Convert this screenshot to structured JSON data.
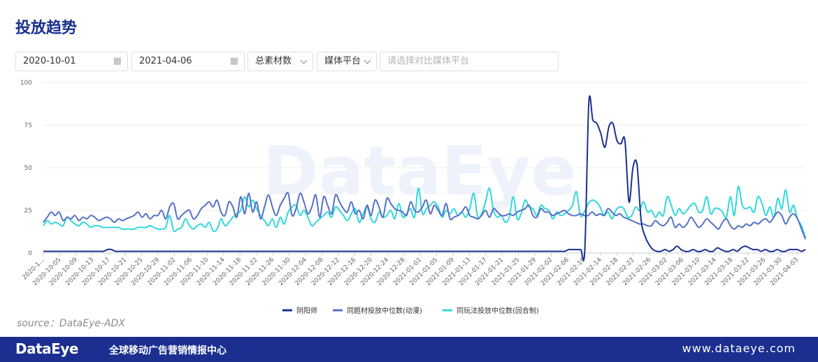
{
  "header": {
    "title": "投放趋势"
  },
  "filters": {
    "start_date": "2020-10-01",
    "end_date": "2021-04-06",
    "material": "总素材数",
    "platform": "媒体平台",
    "compare_placeholder": "请选择对比媒体平台"
  },
  "footer": {
    "source": "source：DataEye-ADX",
    "logo": "DataEye",
    "slogan": "全球移动广告营销情报中心",
    "url": "www.dataeye.com"
  },
  "colors": {
    "brand": "#1a2f8f",
    "s1": "#1a2f8f",
    "s2": "#5470c6",
    "s3": "#2fd8dc"
  },
  "chart_data": {
    "type": "line",
    "yticks": [
      0,
      25,
      50,
      75,
      100
    ],
    "ylim": [
      0,
      100
    ],
    "xlabels": [
      "2020-1...",
      "2020-10-05",
      "2020-10-09",
      "2020-10-13",
      "2020-10-17",
      "2020-10-21",
      "2020-10-25",
      "2020-10-29",
      "2020-11-02",
      "2020-11-06",
      "2020-11-10",
      "2020-11-14",
      "2020-11-18",
      "2020-11-22",
      "2020-11-26",
      "2020-11-30",
      "2020-12-04",
      "2020-12-08",
      "2020-12-12",
      "2020-12-16",
      "2020-12-20",
      "2020-12-24",
      "2020-12-28",
      "2021-01-01",
      "2021-01-05",
      "2021-01-09",
      "2021-01-13",
      "2021-01-17",
      "2021-01-21",
      "2021-01-25",
      "2021-01-29",
      "2021-02-02",
      "2021-02-06",
      "2021-02-10",
      "2021-02-14",
      "2021-02-18",
      "2021-02-22",
      "2021-02-26",
      "2021-03-02",
      "2021-03-06",
      "2021-03-10",
      "2021-03-14",
      "2021-03-18",
      "2021-03-22",
      "2021-03-26",
      "2021-03-30",
      "2021-04-03"
    ],
    "series": [
      {
        "name": "阴阳师",
        "values": [
          1,
          1,
          1,
          1,
          1,
          1,
          1,
          1,
          1,
          1,
          1,
          1,
          1,
          1,
          1,
          1,
          2,
          2,
          1,
          1,
          1,
          1,
          1,
          1,
          1,
          1,
          1,
          1,
          1,
          1,
          1,
          1,
          1,
          1,
          1,
          1,
          1,
          1,
          1,
          1,
          1,
          1,
          1,
          1,
          1,
          1,
          1,
          1,
          1,
          1,
          1,
          1,
          1,
          1,
          1,
          1,
          1,
          1,
          1,
          1,
          1,
          1,
          1,
          1,
          1,
          1,
          1,
          1,
          1,
          1,
          1,
          1,
          1,
          1,
          1,
          1,
          1,
          1,
          1,
          1,
          1,
          1,
          1,
          1,
          1,
          1,
          1,
          1,
          1,
          1,
          1,
          1,
          1,
          1,
          1,
          1,
          1,
          1,
          1,
          1,
          1,
          1,
          1,
          1,
          1,
          1,
          1,
          1,
          1,
          1,
          1,
          1,
          1,
          1,
          1,
          1,
          1,
          1,
          1,
          1,
          1,
          1,
          1,
          1,
          1,
          1,
          1,
          1,
          1,
          1,
          1,
          2,
          2,
          2,
          2,
          2,
          88,
          78,
          76,
          70,
          62,
          74,
          76,
          66,
          64,
          66,
          30,
          50,
          52,
          20,
          10,
          5,
          2,
          1,
          1,
          2,
          1,
          2,
          4,
          2,
          1,
          1,
          2,
          1,
          1,
          2,
          1,
          1,
          3,
          2,
          1,
          1,
          2,
          1,
          3,
          4,
          3,
          2,
          2,
          1,
          2,
          1,
          1,
          2,
          1,
          1,
          2,
          2,
          2,
          1,
          2
        ],
        "color_key": "s1"
      },
      {
        "name": "同题材投放中位数(动漫)",
        "values": [
          18,
          21,
          24,
          22,
          24,
          19,
          21,
          20,
          22,
          19,
          21,
          20,
          22,
          21,
          19,
          20,
          21,
          20,
          18,
          20,
          19,
          20,
          21,
          22,
          24,
          21,
          23,
          20,
          22,
          22,
          25,
          20,
          27,
          29,
          20,
          22,
          24,
          25,
          20,
          22,
          26,
          28,
          30,
          27,
          31,
          24,
          22,
          30,
          27,
          21,
          33,
          23,
          35,
          24,
          30,
          20,
          27,
          34,
          27,
          22,
          28,
          32,
          35,
          22,
          26,
          35,
          30,
          23,
          27,
          34,
          21,
          33,
          28,
          23,
          34,
          30,
          26,
          24,
          30,
          23,
          25,
          20,
          28,
          22,
          31,
          27,
          21,
          32,
          29,
          26,
          25,
          24,
          22,
          30,
          25,
          24,
          27,
          31,
          23,
          28,
          25,
          22,
          29,
          20,
          21,
          22,
          24,
          27,
          22,
          21,
          20,
          22,
          25,
          21,
          26,
          24,
          22,
          22,
          23,
          22,
          24,
          25,
          26,
          28,
          22,
          21,
          26,
          24,
          24,
          22,
          23,
          24,
          25,
          23,
          22,
          22,
          23,
          22,
          22,
          24,
          22,
          23,
          22,
          26,
          24,
          22,
          23,
          21,
          20,
          19,
          18,
          17,
          17,
          16,
          16,
          19,
          17,
          16,
          18,
          21,
          15,
          17,
          15,
          17,
          21,
          18,
          15,
          17,
          20,
          18,
          16,
          14,
          18,
          20,
          16,
          14,
          16,
          15,
          17,
          16,
          18,
          17,
          19,
          20,
          18,
          21,
          24,
          22,
          17,
          21,
          23,
          20,
          14,
          8
        ],
        "color_key": "s2"
      },
      {
        "name": "同玩法投放中位数(回合制)",
        "values": [
          16,
          19,
          17,
          18,
          17,
          16,
          21,
          19,
          17,
          16,
          18,
          17,
          15,
          16,
          16,
          15,
          15,
          15,
          15,
          15,
          14,
          14,
          14,
          14,
          15,
          15,
          15,
          16,
          15,
          14,
          14,
          15,
          22,
          13,
          14,
          15,
          20,
          16,
          14,
          16,
          17,
          15,
          18,
          13,
          14,
          20,
          16,
          18,
          21,
          23,
          25,
          33,
          27,
          31,
          26,
          22,
          19,
          16,
          20,
          15,
          21,
          17,
          24,
          27,
          28,
          22,
          25,
          21,
          16,
          18,
          20,
          22,
          24,
          21,
          27,
          25,
          22,
          19,
          23,
          26,
          18,
          23,
          27,
          20,
          18,
          24,
          21,
          22,
          25,
          20,
          29,
          21,
          23,
          26,
          21,
          38,
          23,
          26,
          28,
          30,
          27,
          21,
          25,
          23,
          26,
          22,
          24,
          21,
          26,
          35,
          21,
          23,
          30,
          38,
          25,
          21,
          22,
          18,
          21,
          33,
          20,
          23,
          31,
          27,
          26,
          22,
          28,
          26,
          25,
          20,
          24,
          22,
          23,
          25,
          28,
          36,
          22,
          24,
          29,
          31,
          30,
          27,
          22,
          24,
          20,
          25,
          27,
          26,
          21,
          22,
          27,
          25,
          30,
          24,
          25,
          21,
          24,
          22,
          33,
          28,
          22,
          26,
          23,
          25,
          28,
          29,
          24,
          25,
          33,
          23,
          26,
          26,
          24,
          21,
          33,
          22,
          39,
          28,
          26,
          27,
          24,
          33,
          29,
          22,
          27,
          21,
          32,
          26,
          37,
          24,
          28,
          20,
          16,
          9
        ],
        "color_key": "s3"
      }
    ]
  }
}
